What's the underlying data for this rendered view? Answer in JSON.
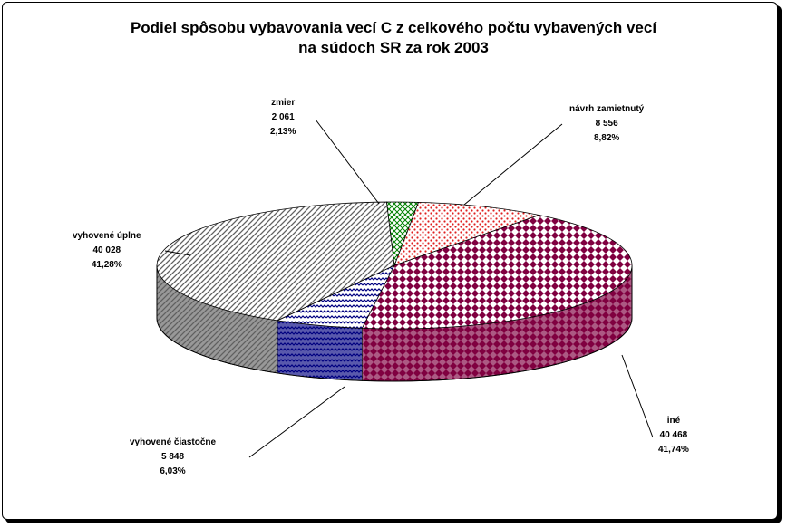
{
  "chart_data": {
    "type": "pie",
    "variant": "3d",
    "title": [
      "Podiel spôsobu vybavovania vecí C z celkového počtu vybavených vecí",
      "na súdoch SR za rok 2003"
    ],
    "slices": [
      {
        "label": "návrh zamietnutý",
        "value": "8 556",
        "percent": "8,82%",
        "share": 8.82,
        "color": "#e02020",
        "pattern": "dots"
      },
      {
        "label": "iné",
        "value": "40 468",
        "percent": "41,74%",
        "share": 41.74,
        "color": "#800040",
        "pattern": "diamonds"
      },
      {
        "label": "vyhovené čiastočne",
        "value": "5 848",
        "percent": "6,03%",
        "share": 6.03,
        "color": "#000080",
        "pattern": "zigzag"
      },
      {
        "label": "vyhovené úplne",
        "value": "40 028",
        "percent": "41,28%",
        "share": 41.28,
        "color": "#606060",
        "pattern": "diagonal"
      },
      {
        "label": "zmier",
        "value": "2 061",
        "percent": "2,13%",
        "share": 2.13,
        "color": "#008000",
        "pattern": "checks"
      }
    ]
  }
}
